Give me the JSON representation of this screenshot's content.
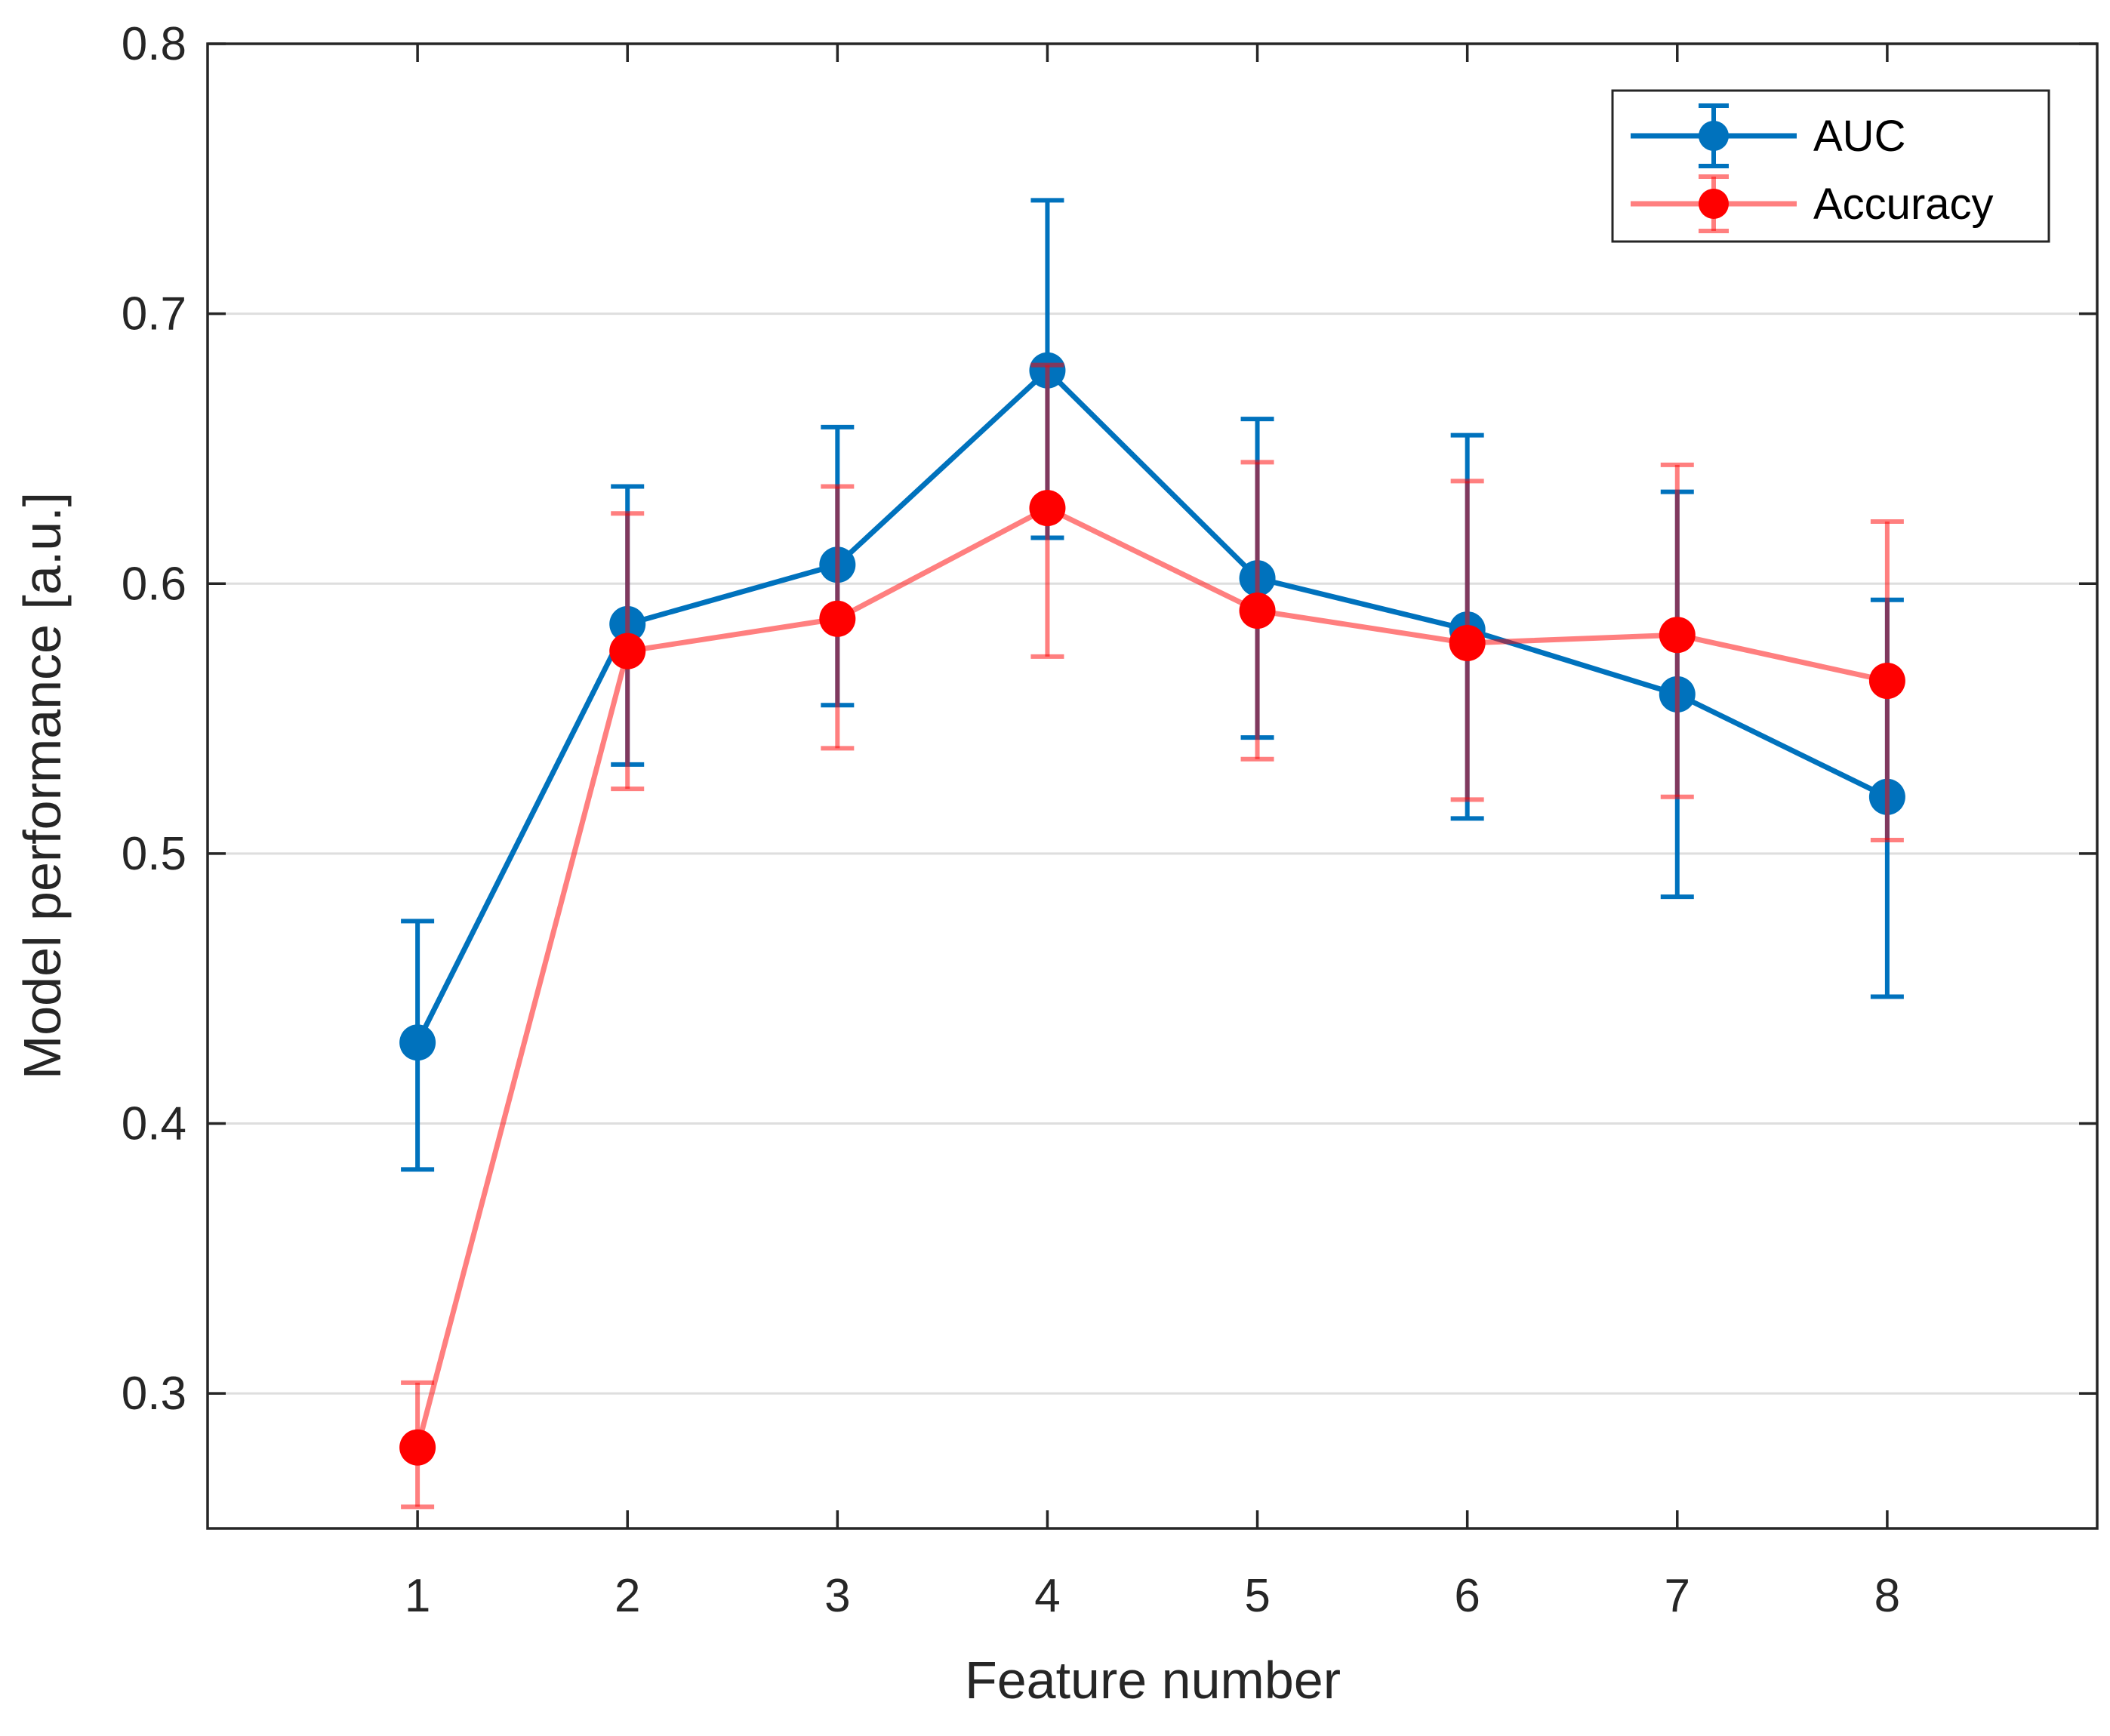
{
  "chart_data": {
    "type": "line",
    "xlabel": "Feature number",
    "ylabel": "Model performance [a.u.]",
    "xlim": [
      0,
      9.0
    ],
    "ylim": [
      0.25,
      0.8
    ],
    "x": [
      1,
      2,
      3,
      4,
      5,
      6,
      7,
      8
    ],
    "xticks": [
      "1",
      "2",
      "3",
      "4",
      "5",
      "6",
      "7",
      "8"
    ],
    "yticks": [
      "0.3",
      "0.4",
      "0.5",
      "0.6",
      "0.7",
      "0.8"
    ],
    "ytick_values": [
      0.3,
      0.4,
      0.5,
      0.6,
      0.7,
      0.8
    ],
    "grid": "horizontal",
    "legend_position": "top-right",
    "series": [
      {
        "name": "AUC",
        "color": "#0072bd",
        "opacity": 1.0,
        "values": [
          0.43,
          0.585,
          0.607,
          0.679,
          0.602,
          0.583,
          0.559,
          0.521
        ],
        "err_low": [
          0.383,
          0.533,
          0.555,
          0.617,
          0.543,
          0.513,
          0.484,
          0.447
        ],
        "err_high": [
          0.475,
          0.636,
          0.658,
          0.742,
          0.661,
          0.655,
          0.634,
          0.594
        ]
      },
      {
        "name": "Accuracy",
        "color": "#ff0000",
        "opacity": 0.5,
        "values": [
          0.28,
          0.575,
          0.587,
          0.628,
          0.59,
          0.578,
          0.581,
          0.564
        ],
        "err_low": [
          0.258,
          0.524,
          0.539,
          0.573,
          0.535,
          0.52,
          0.521,
          0.505
        ],
        "err_high": [
          0.304,
          0.626,
          0.636,
          0.681,
          0.645,
          0.638,
          0.644,
          0.623
        ]
      }
    ]
  }
}
